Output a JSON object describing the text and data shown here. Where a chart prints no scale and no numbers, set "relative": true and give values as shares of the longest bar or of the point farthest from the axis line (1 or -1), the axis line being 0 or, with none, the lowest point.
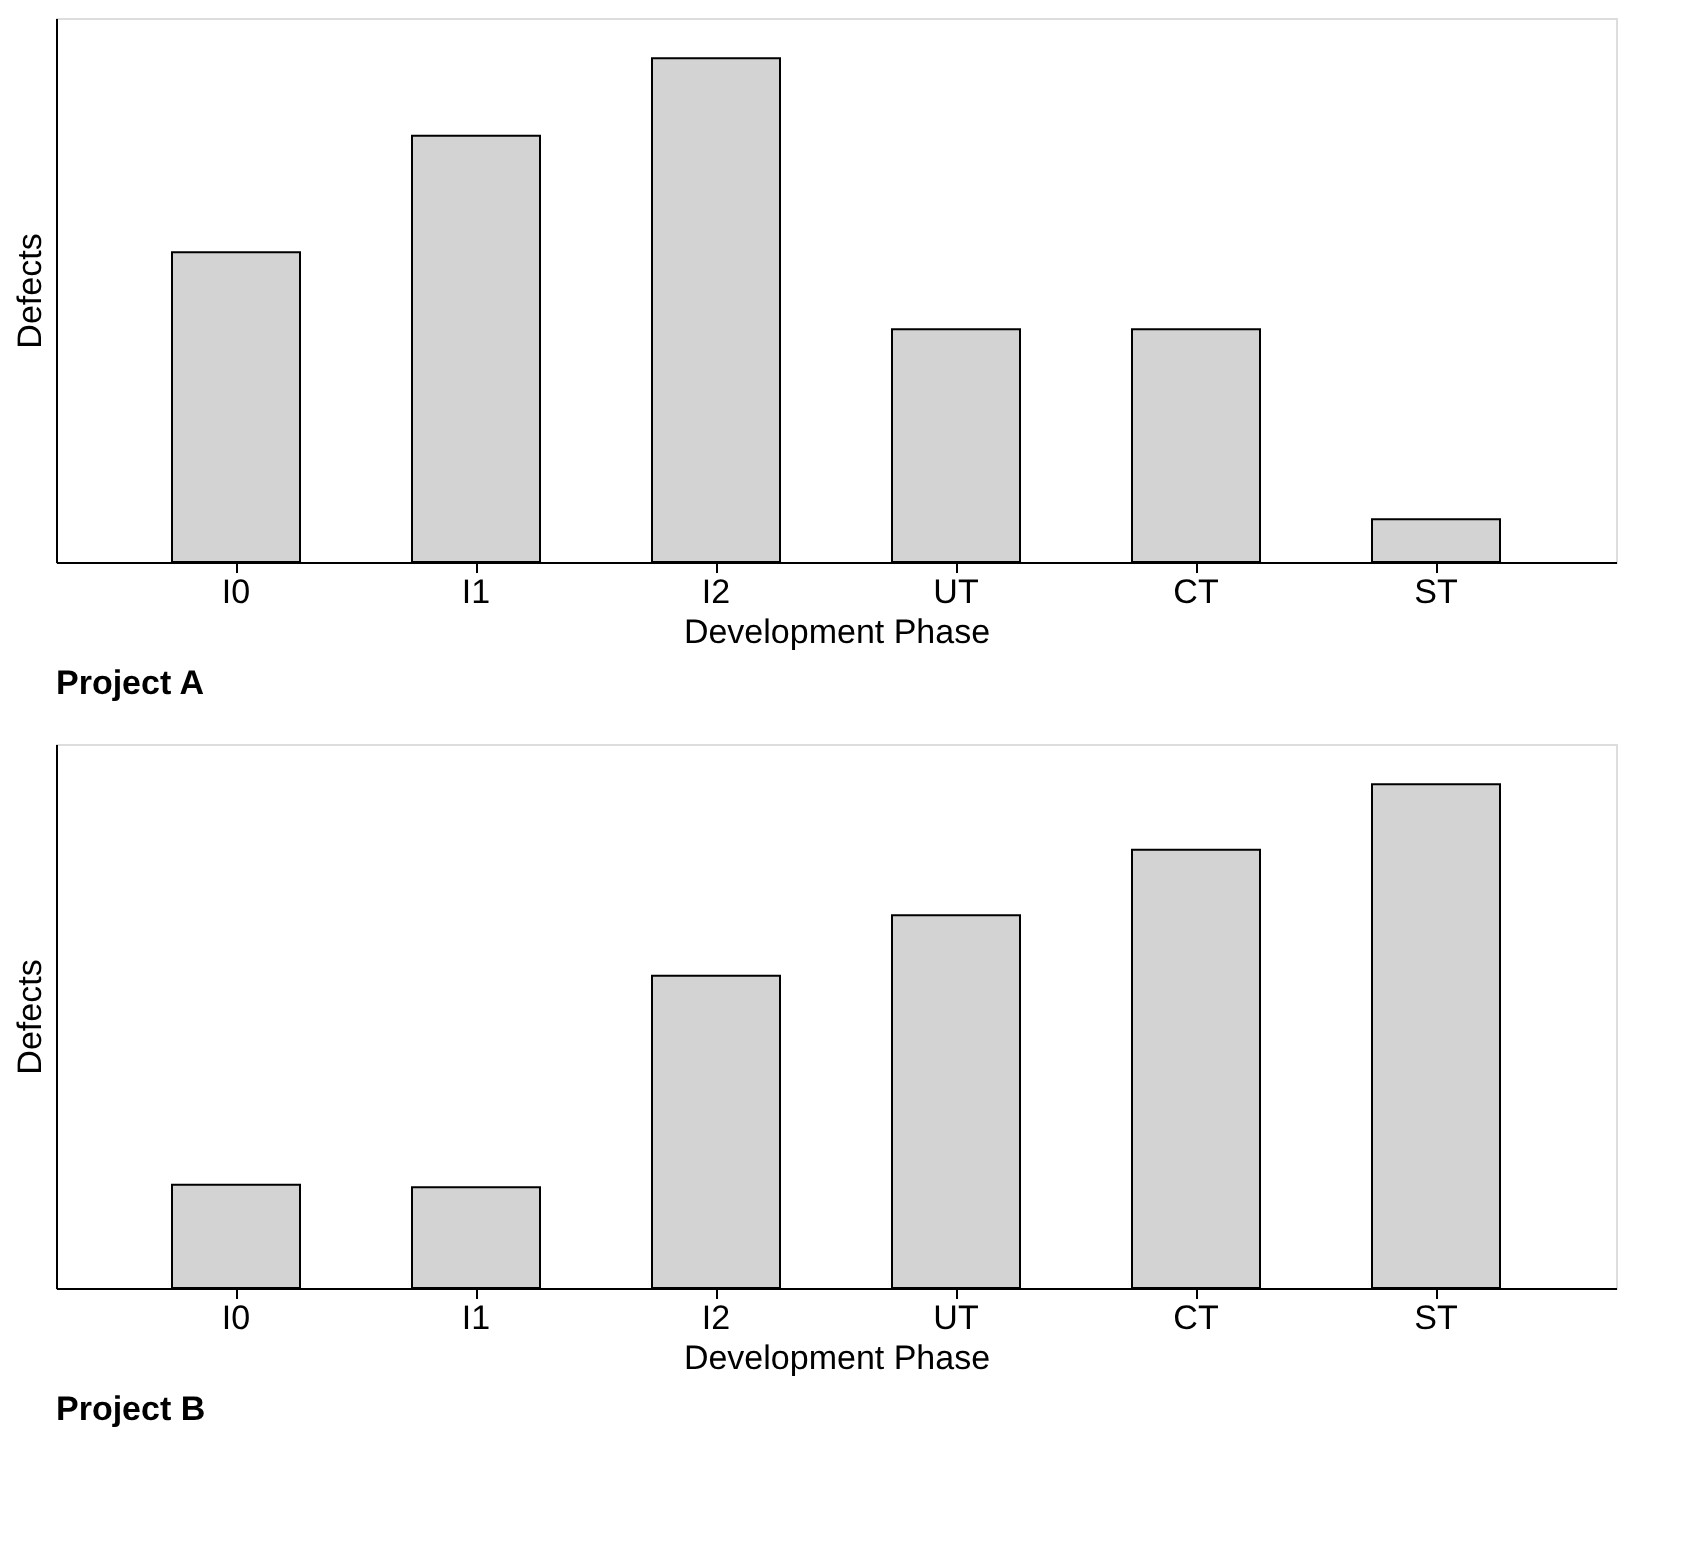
{
  "chart_data": [
    {
      "type": "bar",
      "title": "Project A",
      "xlabel": "Development Phase",
      "ylabel": "Defects",
      "relative": true,
      "color": "#d3d3d3",
      "categories": [
        "I0",
        "I1",
        "I2",
        "UT",
        "CT",
        "ST"
      ],
      "values": [
        0.615,
        0.846,
        1,
        0.462,
        0.462,
        0.085
      ]
    },
    {
      "type": "bar",
      "title": "Project B",
      "xlabel": "Development Phase",
      "ylabel": "Defects",
      "relative": true,
      "color": "#d3d3d3",
      "categories": [
        "I0",
        "I1",
        "I2",
        "UT",
        "CT",
        "ST"
      ],
      "values": [
        0.205,
        0.2,
        0.62,
        0.74,
        0.87,
        1
      ]
    }
  ]
}
